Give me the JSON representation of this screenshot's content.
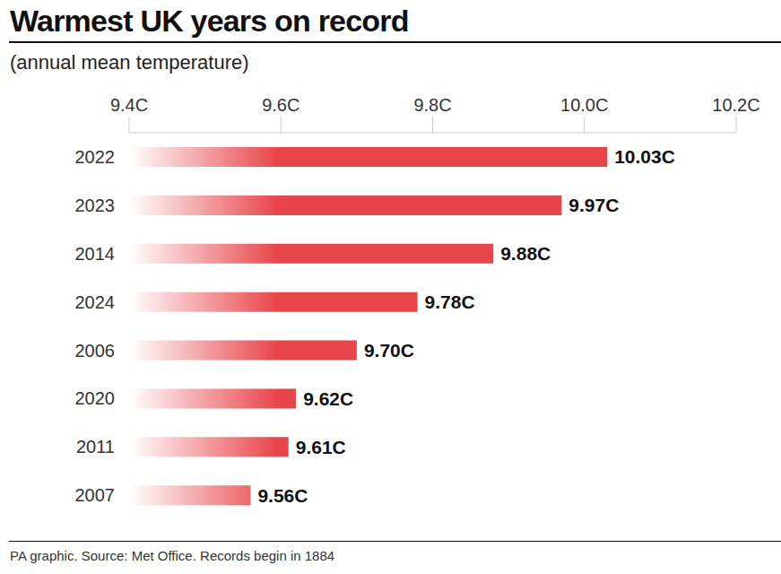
{
  "chart_data": {
    "type": "bar",
    "orientation": "horizontal",
    "title": "Warmest UK years on record",
    "subtitle": "(annual mean temperature)",
    "note": "PA graphic. Source: Met Office. Records begin in 1884",
    "categories": [
      "2022",
      "2023",
      "2014",
      "2024",
      "2006",
      "2020",
      "2011",
      "2007"
    ],
    "values": [
      10.03,
      9.97,
      9.88,
      9.78,
      9.7,
      9.62,
      9.61,
      9.56
    ],
    "value_labels": [
      "10.03C",
      "9.97C",
      "9.88C",
      "9.78C",
      "9.70C",
      "9.62C",
      "9.61C",
      "9.56C"
    ],
    "color": "#e8454a",
    "xlim": [
      9.4,
      10.2
    ],
    "xticks": [
      {
        "value": 9.4,
        "label": "9.4C"
      },
      {
        "value": 9.6,
        "label": "9.6C"
      },
      {
        "value": 9.8,
        "label": "9.8C"
      },
      {
        "value": 10.0,
        "label": "10.0C"
      },
      {
        "value": 10.2,
        "label": "10.2C"
      }
    ],
    "grid": false,
    "data_labels": true
  }
}
